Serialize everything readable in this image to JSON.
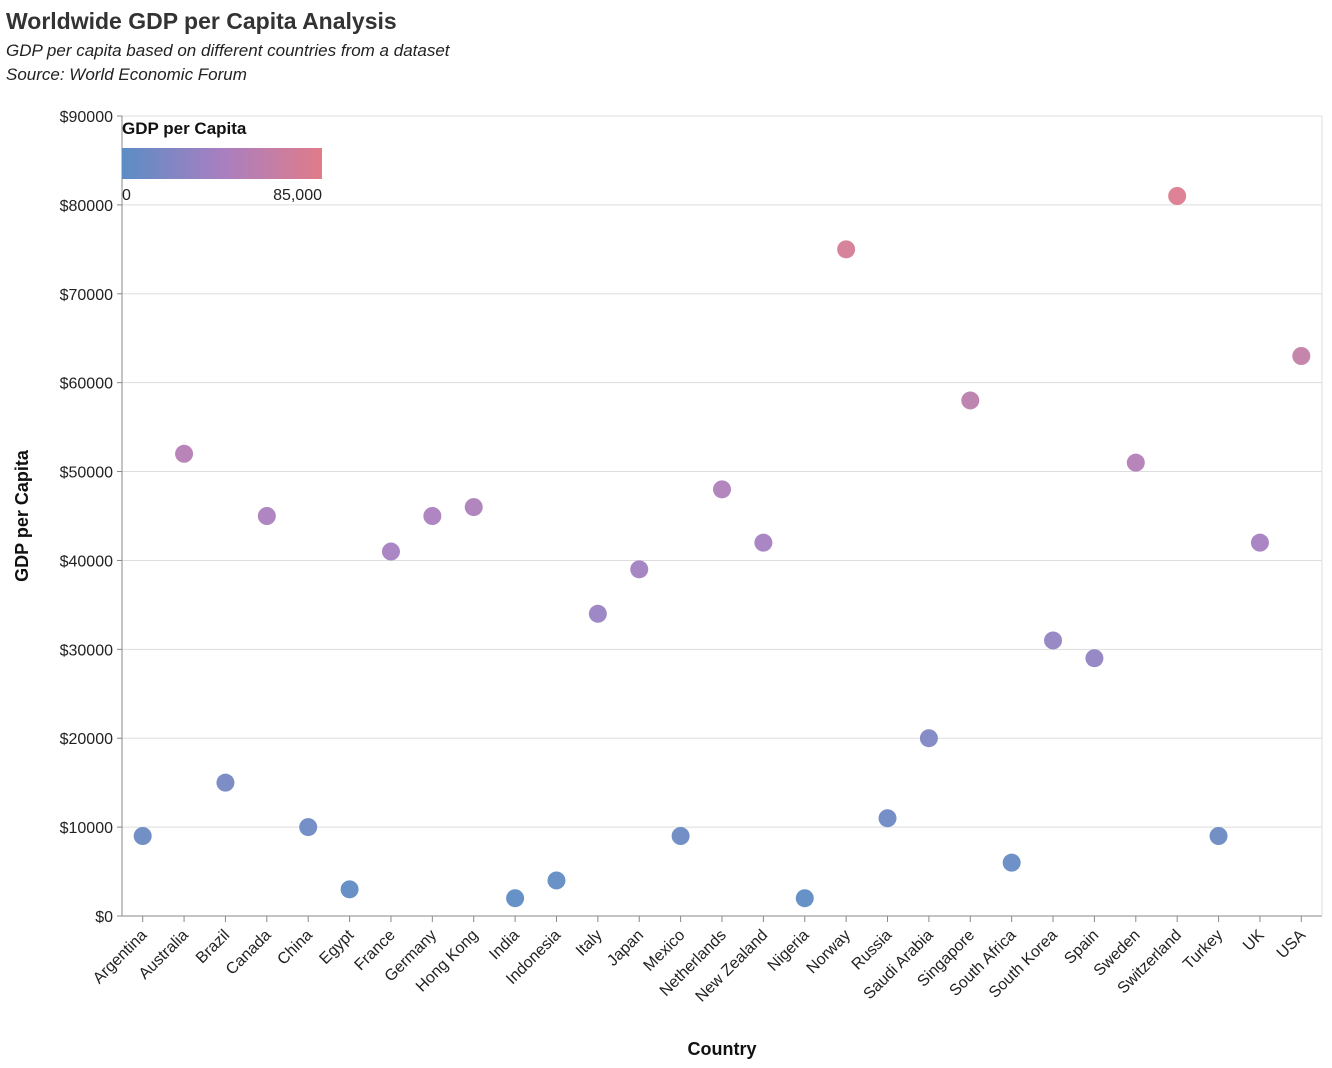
{
  "chart_data": {
    "type": "scatter",
    "title": "Worldwide GDP per Capita Analysis",
    "subtitle": [
      "GDP per capita based on different countries from a dataset",
      "Source: World Economic Forum"
    ],
    "xlabel": "Country",
    "ylabel": "GDP per Capita",
    "ylim": [
      0,
      90000
    ],
    "y_ticks": [
      "$0",
      "$10000",
      "$20000",
      "$30000",
      "$40000",
      "$50000",
      "$60000",
      "$70000",
      "$80000",
      "$90000"
    ],
    "y_tick_values": [
      0,
      10000,
      20000,
      30000,
      40000,
      50000,
      60000,
      70000,
      80000,
      90000
    ],
    "grid": true,
    "categories": [
      "Argentina",
      "Australia",
      "Brazil",
      "Canada",
      "China",
      "Egypt",
      "France",
      "Germany",
      "Hong Kong",
      "India",
      "Indonesia",
      "Italy",
      "Japan",
      "Mexico",
      "Netherlands",
      "New Zealand",
      "Nigeria",
      "Norway",
      "Russia",
      "Saudi Arabia",
      "Singapore",
      "South Africa",
      "South Korea",
      "Spain",
      "Sweden",
      "Switzerland",
      "Turkey",
      "UK",
      "USA"
    ],
    "values": [
      9000,
      52000,
      15000,
      45000,
      10000,
      3000,
      41000,
      45000,
      46000,
      2000,
      4000,
      34000,
      39000,
      9000,
      48000,
      42000,
      2000,
      75000,
      11000,
      20000,
      58000,
      6000,
      31000,
      29000,
      51000,
      81000,
      9000,
      42000,
      63000
    ],
    "legend": {
      "title": "GDP per Capita",
      "min_label": "0",
      "max_label": "85,000",
      "domain": [
        0,
        85000
      ],
      "placement": "top-left",
      "colors": [
        "#5b8dc4",
        "#a87fc1",
        "#e07c8a"
      ]
    }
  }
}
